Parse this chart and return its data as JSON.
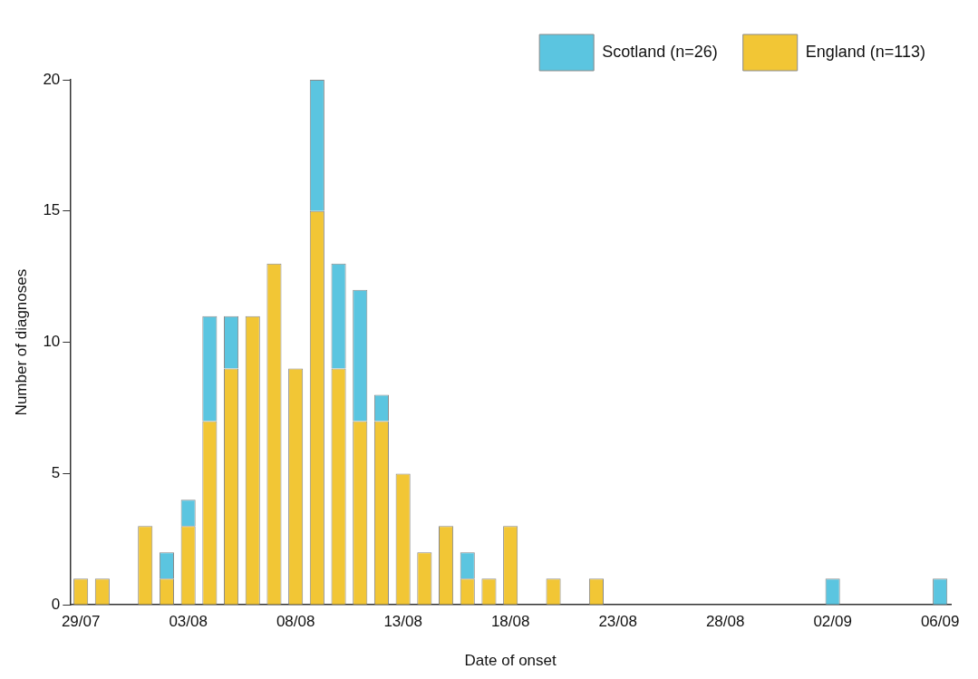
{
  "chart_data": {
    "type": "bar",
    "xlabel": "Date of onset",
    "ylabel": "Number of diagnoses",
    "stacked": true,
    "categories": [
      "29/07",
      null,
      null,
      null,
      null,
      "03/08",
      null,
      null,
      null,
      null,
      "08/08",
      null,
      null,
      null,
      null,
      "13/08",
      null,
      null,
      null,
      null,
      "18/08",
      null,
      null,
      null,
      null,
      "23/08",
      null,
      null,
      null,
      null,
      "28/08",
      null,
      null,
      null,
      null,
      "02/09",
      null,
      null,
      null,
      null,
      "06/09"
    ],
    "series": [
      {
        "name": "England (n=113)",
        "color": "#f2c635",
        "values": [
          1,
          1,
          null,
          3,
          1,
          3,
          7,
          9,
          11,
          13,
          9,
          15,
          9,
          7,
          7,
          5,
          2,
          3,
          1,
          1,
          3,
          null,
          1,
          null,
          1,
          null,
          null,
          null,
          null,
          null,
          null,
          null,
          null,
          null,
          null,
          null,
          null,
          null,
          null,
          null,
          null
        ]
      },
      {
        "name": "Scotland (n=26)",
        "color": "#5bc5e0",
        "values": [
          null,
          null,
          null,
          null,
          1,
          1,
          4,
          2,
          null,
          null,
          null,
          5,
          4,
          5,
          1,
          null,
          null,
          null,
          1,
          null,
          null,
          null,
          null,
          null,
          null,
          null,
          null,
          null,
          null,
          null,
          null,
          null,
          null,
          null,
          null,
          1,
          null,
          null,
          null,
          null,
          1
        ]
      }
    ],
    "ylim": [
      0,
      20
    ],
    "yticks": [
      0,
      5,
      10,
      15,
      20
    ],
    "grid": false,
    "legend": "top right"
  }
}
